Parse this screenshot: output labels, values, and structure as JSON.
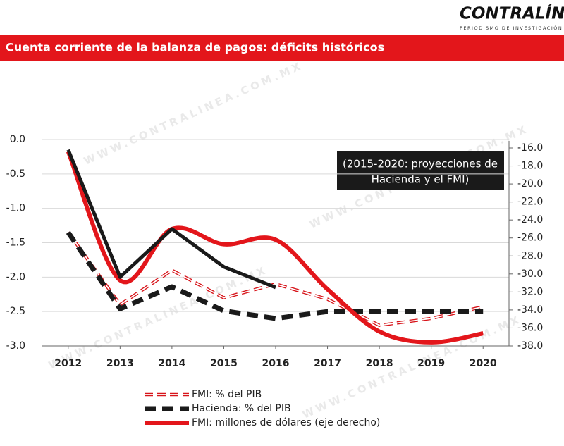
{
  "header": {
    "logo": "CONTRALÍNEA",
    "tagline": "PERIODISMO DE INVESTIGACIÓN"
  },
  "watermark": "WWW.CONTRALINEA.COM.MX",
  "chart_data": {
    "type": "line",
    "title": "Cuenta corriente de la balanza de pagos: déficits históricos",
    "annotation": [
      "(2015-2020: proyecciones de",
      "Hacienda y el FMI)"
    ],
    "categories": [
      "2012",
      "2013",
      "2014",
      "2015",
      "2016",
      "2017",
      "2018",
      "2019",
      "2020"
    ],
    "ylim": [
      -3,
      0
    ],
    "yticks": [
      {
        "value": 0,
        "label": "0.0"
      },
      -0.5,
      {
        "value": -1,
        "label": "-1.0"
      },
      -1.5,
      {
        "value": -2,
        "label": "-2.0"
      },
      -2.5,
      {
        "value": -3,
        "label": "-3.0"
      }
    ],
    "y2lim": [
      -38,
      -16
    ],
    "y2ticks": [
      {
        "value": -16,
        "label": "-16.0"
      },
      {
        "value": -18,
        "label": "-18.0"
      },
      {
        "value": -20,
        "label": "-20.0"
      },
      {
        "value": -22,
        "label": "-22.0"
      },
      {
        "value": -24,
        "label": "-24.0"
      },
      {
        "value": -26,
        "label": "-26.0"
      },
      {
        "value": -28,
        "label": "-28.0"
      },
      {
        "value": -30,
        "label": "-30.0"
      },
      {
        "value": -32,
        "label": "-32.0"
      },
      {
        "value": -34,
        "label": "-34.0"
      },
      {
        "value": -36,
        "label": "-36.0"
      },
      {
        "value": -38,
        "label": "-38.0"
      }
    ],
    "grid": true,
    "series": [
      {
        "name": "FMI: % del PIB",
        "color": "#d7141a",
        "style": "dashed-outline",
        "values": [
          -1.35,
          -2.4,
          -1.9,
          -2.3,
          -2.1,
          -2.32,
          -2.7,
          -2.6,
          -2.43
        ]
      },
      {
        "name": "Hacienda: % del PIB",
        "color": "#1a1a1a",
        "style": "dashed",
        "values": [
          -1.35,
          -2.46,
          -2.14,
          -2.49,
          -2.6,
          -2.5,
          -2.5,
          -2.5,
          -2.5
        ]
      },
      {
        "name": "FMI: millones de dólares (eje derecho)",
        "color": "#e3161b",
        "style": "smooth",
        "axis": "y2",
        "values": [
          -16.4,
          -30.7,
          -25.0,
          -26.7,
          -26.2,
          -31.7,
          -36.4,
          -37.6,
          -36.6
        ]
      },
      {
        "color": "#1a1a1a",
        "style": "solid",
        "values": [
          -0.15,
          -2.0,
          -1.3,
          -1.85,
          -2.15,
          null,
          null,
          null,
          null
        ]
      }
    ]
  }
}
